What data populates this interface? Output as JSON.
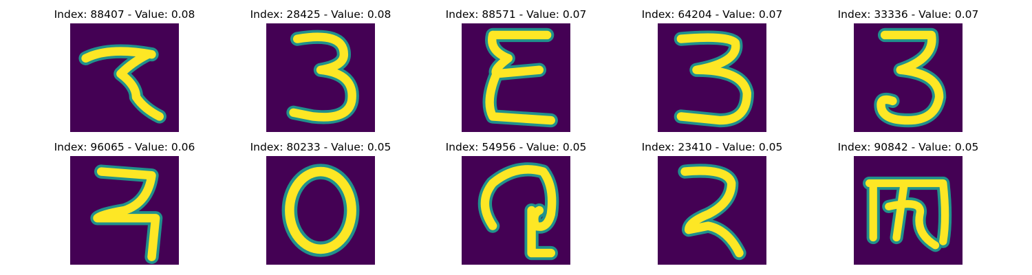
{
  "colors": {
    "background": "#440154",
    "edge": "#21918c",
    "mid": "#5ec962",
    "stroke": "#fde725"
  },
  "panels": [
    {
      "title": "Index: 88407 - Value: 0.08",
      "glyph": "devanagari-seven-like-icon"
    },
    {
      "title": "Index: 28425 - Value: 0.08",
      "glyph": "digit-three-icon"
    },
    {
      "title": "Index: 88571 - Value: 0.07",
      "glyph": "digit-three-flat-top-icon"
    },
    {
      "title": "Index: 64204 - Value: 0.07",
      "glyph": "digit-three-icon"
    },
    {
      "title": "Index: 33336 - Value: 0.07",
      "glyph": "digit-three-icon"
    },
    {
      "title": "Index: 96065 - Value: 0.06",
      "glyph": "devanagari-seven-like-icon"
    },
    {
      "title": "Index: 80233 - Value: 0.05",
      "glyph": "digit-zero-icon"
    },
    {
      "title": "Index: 54956 - Value: 0.05",
      "glyph": "curled-glyph-icon"
    },
    {
      "title": "Index: 23410 - Value: 0.05",
      "glyph": "devanagari-two-like-icon"
    },
    {
      "title": "Index: 90842 - Value: 0.05",
      "glyph": "devanagari-jha-like-icon"
    }
  ]
}
